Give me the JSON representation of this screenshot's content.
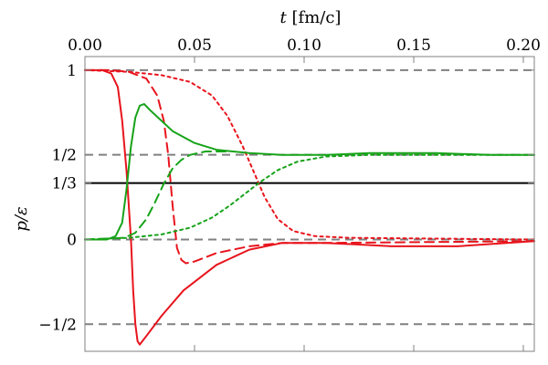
{
  "chart_data": {
    "type": "line",
    "xlabel_var": "t",
    "xlabel_unit": " [fm/c]",
    "ylabel_var": "p/ε",
    "xlim": [
      0.0,
      0.205
    ],
    "ylim": [
      -0.66,
      1.08
    ],
    "x_ticks": [
      0.0,
      0.05,
      0.1,
      0.15,
      0.2
    ],
    "x_tick_labels": [
      "0.00",
      "0.05",
      "0.10",
      "0.15",
      "0.20"
    ],
    "y_ticks": [
      1.0,
      0.5,
      0.3333,
      0.0,
      -0.5
    ],
    "y_tick_labels": [
      "1",
      "1/2",
      "1/3",
      "0",
      "−1/2"
    ],
    "reference_lines": [
      {
        "y": 1.0,
        "style": "dashed",
        "color": "#808080"
      },
      {
        "y": 0.5,
        "style": "dashed",
        "color": "#808080"
      },
      {
        "y": 0.0,
        "style": "dashed",
        "color": "#808080"
      },
      {
        "y": -0.5,
        "style": "dashed",
        "color": "#808080"
      },
      {
        "y": 0.3333,
        "style": "solid",
        "color": "#000000"
      }
    ],
    "series": [
      {
        "color": "#e8141c",
        "dash": "solid",
        "points": [
          [
            0.0,
            1.0
          ],
          [
            0.008,
            1.0
          ],
          [
            0.012,
            0.98
          ],
          [
            0.015,
            0.9
          ],
          [
            0.017,
            0.7
          ],
          [
            0.019,
            0.4
          ],
          [
            0.021,
            0.0
          ],
          [
            0.022,
            -0.3
          ],
          [
            0.023,
            -0.5
          ],
          [
            0.024,
            -0.6
          ],
          [
            0.025,
            -0.62
          ],
          [
            0.028,
            -0.57
          ],
          [
            0.035,
            -0.45
          ],
          [
            0.045,
            -0.3
          ],
          [
            0.06,
            -0.15
          ],
          [
            0.075,
            -0.06
          ],
          [
            0.09,
            -0.02
          ],
          [
            0.11,
            -0.02
          ],
          [
            0.14,
            -0.04
          ],
          [
            0.17,
            -0.04
          ],
          [
            0.205,
            -0.01
          ]
        ]
      },
      {
        "color": "#e8141c",
        "dash": "dashed",
        "points": [
          [
            0.0,
            1.0
          ],
          [
            0.012,
            1.0
          ],
          [
            0.02,
            0.99
          ],
          [
            0.028,
            0.95
          ],
          [
            0.033,
            0.85
          ],
          [
            0.036,
            0.7
          ],
          [
            0.038,
            0.5
          ],
          [
            0.04,
            0.2
          ],
          [
            0.042,
            -0.05
          ],
          [
            0.044,
            -0.12
          ],
          [
            0.046,
            -0.14
          ],
          [
            0.05,
            -0.13
          ],
          [
            0.06,
            -0.08
          ],
          [
            0.075,
            -0.04
          ],
          [
            0.09,
            -0.02
          ],
          [
            0.11,
            -0.02
          ],
          [
            0.205,
            -0.01
          ]
        ]
      },
      {
        "color": "#e8141c",
        "dash": "dotted",
        "points": [
          [
            0.0,
            1.0
          ],
          [
            0.02,
            0.99
          ],
          [
            0.035,
            0.97
          ],
          [
            0.048,
            0.93
          ],
          [
            0.058,
            0.85
          ],
          [
            0.065,
            0.73
          ],
          [
            0.072,
            0.55
          ],
          [
            0.077,
            0.4
          ],
          [
            0.082,
            0.25
          ],
          [
            0.088,
            0.12
          ],
          [
            0.095,
            0.05
          ],
          [
            0.105,
            0.02
          ],
          [
            0.12,
            0.01
          ],
          [
            0.205,
            0.0
          ]
        ]
      },
      {
        "color": "#17a319",
        "dash": "solid",
        "points": [
          [
            0.0,
            0.0
          ],
          [
            0.01,
            0.0
          ],
          [
            0.014,
            0.02
          ],
          [
            0.017,
            0.1
          ],
          [
            0.019,
            0.3
          ],
          [
            0.021,
            0.55
          ],
          [
            0.023,
            0.72
          ],
          [
            0.025,
            0.79
          ],
          [
            0.027,
            0.8
          ],
          [
            0.03,
            0.76
          ],
          [
            0.035,
            0.7
          ],
          [
            0.04,
            0.64
          ],
          [
            0.05,
            0.57
          ],
          [
            0.06,
            0.53
          ],
          [
            0.075,
            0.51
          ],
          [
            0.09,
            0.5
          ],
          [
            0.11,
            0.5
          ],
          [
            0.13,
            0.51
          ],
          [
            0.16,
            0.51
          ],
          [
            0.185,
            0.5
          ],
          [
            0.205,
            0.5
          ]
        ]
      },
      {
        "color": "#17a319",
        "dash": "dashed",
        "points": [
          [
            0.0,
            0.0
          ],
          [
            0.018,
            0.01
          ],
          [
            0.023,
            0.04
          ],
          [
            0.028,
            0.12
          ],
          [
            0.032,
            0.22
          ],
          [
            0.036,
            0.33
          ],
          [
            0.04,
            0.42
          ],
          [
            0.044,
            0.47
          ],
          [
            0.048,
            0.5
          ],
          [
            0.055,
            0.52
          ],
          [
            0.065,
            0.52
          ]
        ]
      },
      {
        "color": "#17a319",
        "dash": "dotted",
        "points": [
          [
            0.0,
            0.0
          ],
          [
            0.02,
            0.01
          ],
          [
            0.035,
            0.03
          ],
          [
            0.048,
            0.07
          ],
          [
            0.058,
            0.13
          ],
          [
            0.066,
            0.2
          ],
          [
            0.074,
            0.28
          ],
          [
            0.08,
            0.34
          ],
          [
            0.088,
            0.41
          ],
          [
            0.097,
            0.46
          ],
          [
            0.11,
            0.49
          ],
          [
            0.13,
            0.5
          ],
          [
            0.205,
            0.5
          ]
        ]
      }
    ]
  }
}
